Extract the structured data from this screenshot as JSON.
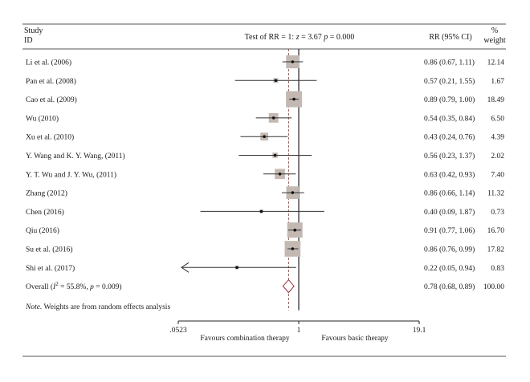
{
  "header": {
    "study_line1": "Study",
    "study_line2": "ID",
    "test_prefix": "Test of RR = 1: ",
    "test_z": "z",
    "test_mid": " = 3.67 ",
    "test_p": "p",
    "test_suffix": " = 0.000",
    "ci_col": "RR (95% CI)",
    "weight_line1": "%",
    "weight_line2": "weight"
  },
  "overall": {
    "label_prefix": "Overall (",
    "label_i": "I",
    "label_sup": "2",
    "label_mid": " = 55.8%, ",
    "label_p": "p",
    "label_suffix": " = 0.009)",
    "rr": 0.78,
    "lo": 0.68,
    "hi": 0.89,
    "ci_text": "0.78 (0.68, 0.89)",
    "weight_text": "100.00"
  },
  "note": {
    "prefix": "Note.",
    "text": " Weights are from random effects analysis"
  },
  "axis": {
    "scale": "log",
    "min": 0.0523,
    "max": 19.1,
    "ticks": [
      {
        "value": 0.0523,
        "label": ".0523"
      },
      {
        "value": 1,
        "label": "1"
      },
      {
        "value": 19.1,
        "label": "19.1"
      }
    ],
    "favours_left": "Favours combination therapy",
    "favours_right": "Favours basic therapy"
  },
  "colors": {
    "box": "#c3b9b2",
    "line": "#333333",
    "dashed": "#b5473f",
    "diamond": "#9b2a3b",
    "rule": "#555555"
  },
  "chart_data": {
    "type": "forest",
    "x_scale": "log",
    "xlim": [
      0.0523,
      19.1
    ],
    "reference_line": 1,
    "pooled_line": 0.78,
    "studies": [
      {
        "label": "Li et al. (2006)",
        "rr": 0.86,
        "lo": 0.67,
        "hi": 1.11,
        "ci_text": "0.86 (0.67, 1.11)",
        "weight": 12.14,
        "weight_text": "12.14",
        "arrow_left": false
      },
      {
        "label": "Pan et al. (2008)",
        "rr": 0.57,
        "lo": 0.21,
        "hi": 1.55,
        "ci_text": "0.57 (0.21, 1.55)",
        "weight": 1.67,
        "weight_text": "1.67",
        "arrow_left": false
      },
      {
        "label": "Cao et al. (2009)",
        "rr": 0.89,
        "lo": 0.79,
        "hi": 1.0,
        "ci_text": "0.89 (0.79, 1.00)",
        "weight": 18.49,
        "weight_text": "18.49",
        "arrow_left": false
      },
      {
        "label": "Wu (2010)",
        "rr": 0.54,
        "lo": 0.35,
        "hi": 0.84,
        "ci_text": "0.54 (0.35, 0.84)",
        "weight": 6.5,
        "weight_text": "6.50",
        "arrow_left": false
      },
      {
        "label": "Xu et al. (2010)",
        "rr": 0.43,
        "lo": 0.24,
        "hi": 0.76,
        "ci_text": "0.43 (0.24, 0.76)",
        "weight": 4.39,
        "weight_text": "4.39",
        "arrow_left": false
      },
      {
        "label": "Y. Wang and K. Y. Wang, (2011)",
        "rr": 0.56,
        "lo": 0.23,
        "hi": 1.37,
        "ci_text": "0.56 (0.23, 1.37)",
        "weight": 2.02,
        "weight_text": "2.02",
        "arrow_left": false
      },
      {
        "label": "Y. T. Wu and J. Y. Wu, (2011)",
        "rr": 0.63,
        "lo": 0.42,
        "hi": 0.93,
        "ci_text": "0.63 (0.42, 0.93)",
        "weight": 7.4,
        "weight_text": "7.40",
        "arrow_left": false
      },
      {
        "label": "Zhang (2012)",
        "rr": 0.86,
        "lo": 0.66,
        "hi": 1.14,
        "ci_text": "0.86 (0.66, 1.14)",
        "weight": 11.32,
        "weight_text": "11.32",
        "arrow_left": false
      },
      {
        "label": "Chen (2016)",
        "rr": 0.4,
        "lo": 0.09,
        "hi": 1.87,
        "ci_text": "0.40 (0.09, 1.87)",
        "weight": 0.73,
        "weight_text": "0.73",
        "arrow_left": false
      },
      {
        "label": "Qiu (2016)",
        "rr": 0.91,
        "lo": 0.77,
        "hi": 1.06,
        "ci_text": "0.91 (0.77, 1.06)",
        "weight": 16.7,
        "weight_text": "16.70",
        "arrow_left": false
      },
      {
        "label": "Su et al. (2016)",
        "rr": 0.86,
        "lo": 0.76,
        "hi": 0.99,
        "ci_text": "0.86 (0.76, 0.99)",
        "weight": 17.82,
        "weight_text": "17.82",
        "arrow_left": false
      },
      {
        "label": "Shi et al. (2017)",
        "rr": 0.22,
        "lo": 0.05,
        "hi": 0.94,
        "ci_text": "0.22 (0.05, 0.94)",
        "weight": 0.83,
        "weight_text": "0.83",
        "arrow_left": true
      }
    ]
  }
}
